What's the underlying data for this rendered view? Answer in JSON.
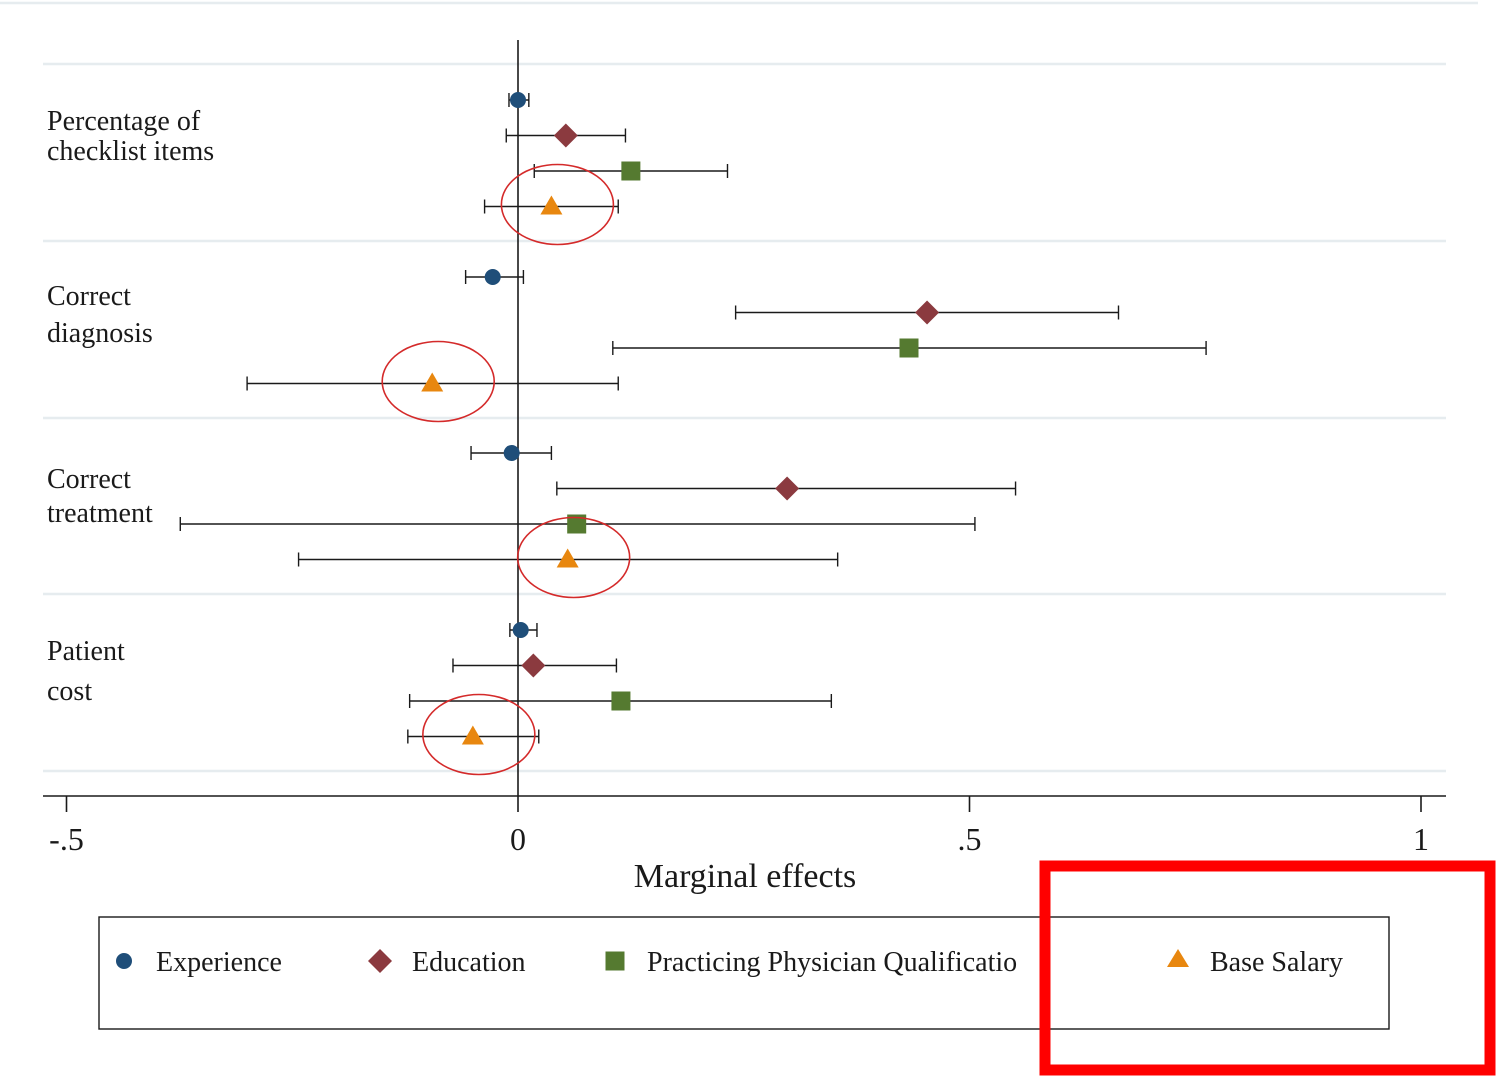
{
  "chart_data": {
    "type": "scatter",
    "xlabel": "Marginal effects",
    "xlim": [
      -0.5,
      1.0
    ],
    "x_ticks": [
      -0.5,
      0,
      0.5,
      1
    ],
    "x_tick_labels": [
      "-.5",
      "0",
      ".5",
      "1"
    ],
    "reference_line_x": 0,
    "grid": "horizontal",
    "legend_position": "bottom",
    "categories": [
      {
        "label": "Percentage of\nchecklist items"
      },
      {
        "label": "Correct\ndiagnosis"
      },
      {
        "label": "Correct\ntreatment"
      },
      {
        "label": "Patient\ncost"
      }
    ],
    "series": [
      {
        "name": "Experience",
        "marker": "circle",
        "color": "#1f4e79",
        "points": [
          {
            "estimate": 0.0,
            "ci_low": -0.01,
            "ci_high": 0.012
          },
          {
            "estimate": -0.028,
            "ci_low": -0.058,
            "ci_high": 0.006
          },
          {
            "estimate": -0.007,
            "ci_low": -0.052,
            "ci_high": 0.037
          },
          {
            "estimate": 0.003,
            "ci_low": -0.009,
            "ci_high": 0.021
          }
        ]
      },
      {
        "name": "Education",
        "marker": "diamond",
        "color": "#8b3a3f",
        "points": [
          {
            "estimate": 0.053,
            "ci_low": -0.013,
            "ci_high": 0.119
          },
          {
            "estimate": 0.453,
            "ci_low": 0.241,
            "ci_high": 0.665
          },
          {
            "estimate": 0.298,
            "ci_low": 0.043,
            "ci_high": 0.551
          },
          {
            "estimate": 0.017,
            "ci_low": -0.072,
            "ci_high": 0.109
          }
        ]
      },
      {
        "name": "Practicing Physician Qualificatio",
        "marker": "square",
        "color": "#557a30",
        "points": [
          {
            "estimate": 0.125,
            "ci_low": 0.018,
            "ci_high": 0.232
          },
          {
            "estimate": 0.433,
            "ci_low": 0.105,
            "ci_high": 0.762
          },
          {
            "estimate": 0.065,
            "ci_low": -0.374,
            "ci_high": 0.506
          },
          {
            "estimate": 0.114,
            "ci_low": -0.12,
            "ci_high": 0.347
          }
        ]
      },
      {
        "name": "Base Salary",
        "marker": "triangle",
        "color": "#e8870f",
        "points": [
          {
            "estimate": 0.037,
            "ci_low": -0.037,
            "ci_high": 0.111
          },
          {
            "estimate": -0.095,
            "ci_low": -0.3,
            "ci_high": 0.111
          },
          {
            "estimate": 0.055,
            "ci_low": -0.243,
            "ci_high": 0.354
          },
          {
            "estimate": -0.05,
            "ci_low": -0.122,
            "ci_high": 0.023
          }
        ]
      }
    ],
    "annotations": {
      "circled_series": "Base Salary",
      "highlighted_legend_entry": "Base Salary"
    }
  }
}
